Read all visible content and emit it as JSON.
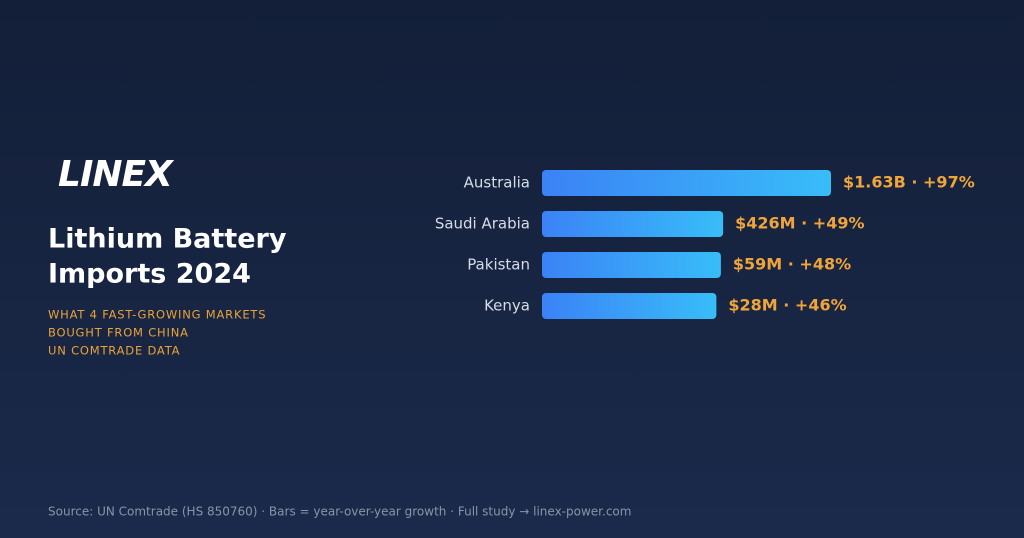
{
  "logo": "LINEX",
  "chart_data": {
    "type": "bar",
    "orientation": "horizontal",
    "title": [
      "Lithium Battery",
      "Imports 2024"
    ],
    "subtitle": [
      "WHAT 4 FAST-GROWING MARKETS",
      "BOUGHT FROM CHINA",
      "UN COMTRADE DATA"
    ],
    "categories": [
      "Australia",
      "Saudi Arabia",
      "Pakistan",
      "Kenya"
    ],
    "values": [
      97,
      49,
      48,
      46
    ],
    "value_labels": [
      "$1.63B · +97%",
      "$426M · +49%",
      "$59M · +48%",
      "$28M · +46%"
    ],
    "colors": [
      "#3b82f6",
      "#38bdf8"
    ],
    "label_color": "#f0a53a",
    "source": "Source: UN Comtrade (HS 850760) · Bars = year-over-year growth · Full study → linex-power.com"
  }
}
